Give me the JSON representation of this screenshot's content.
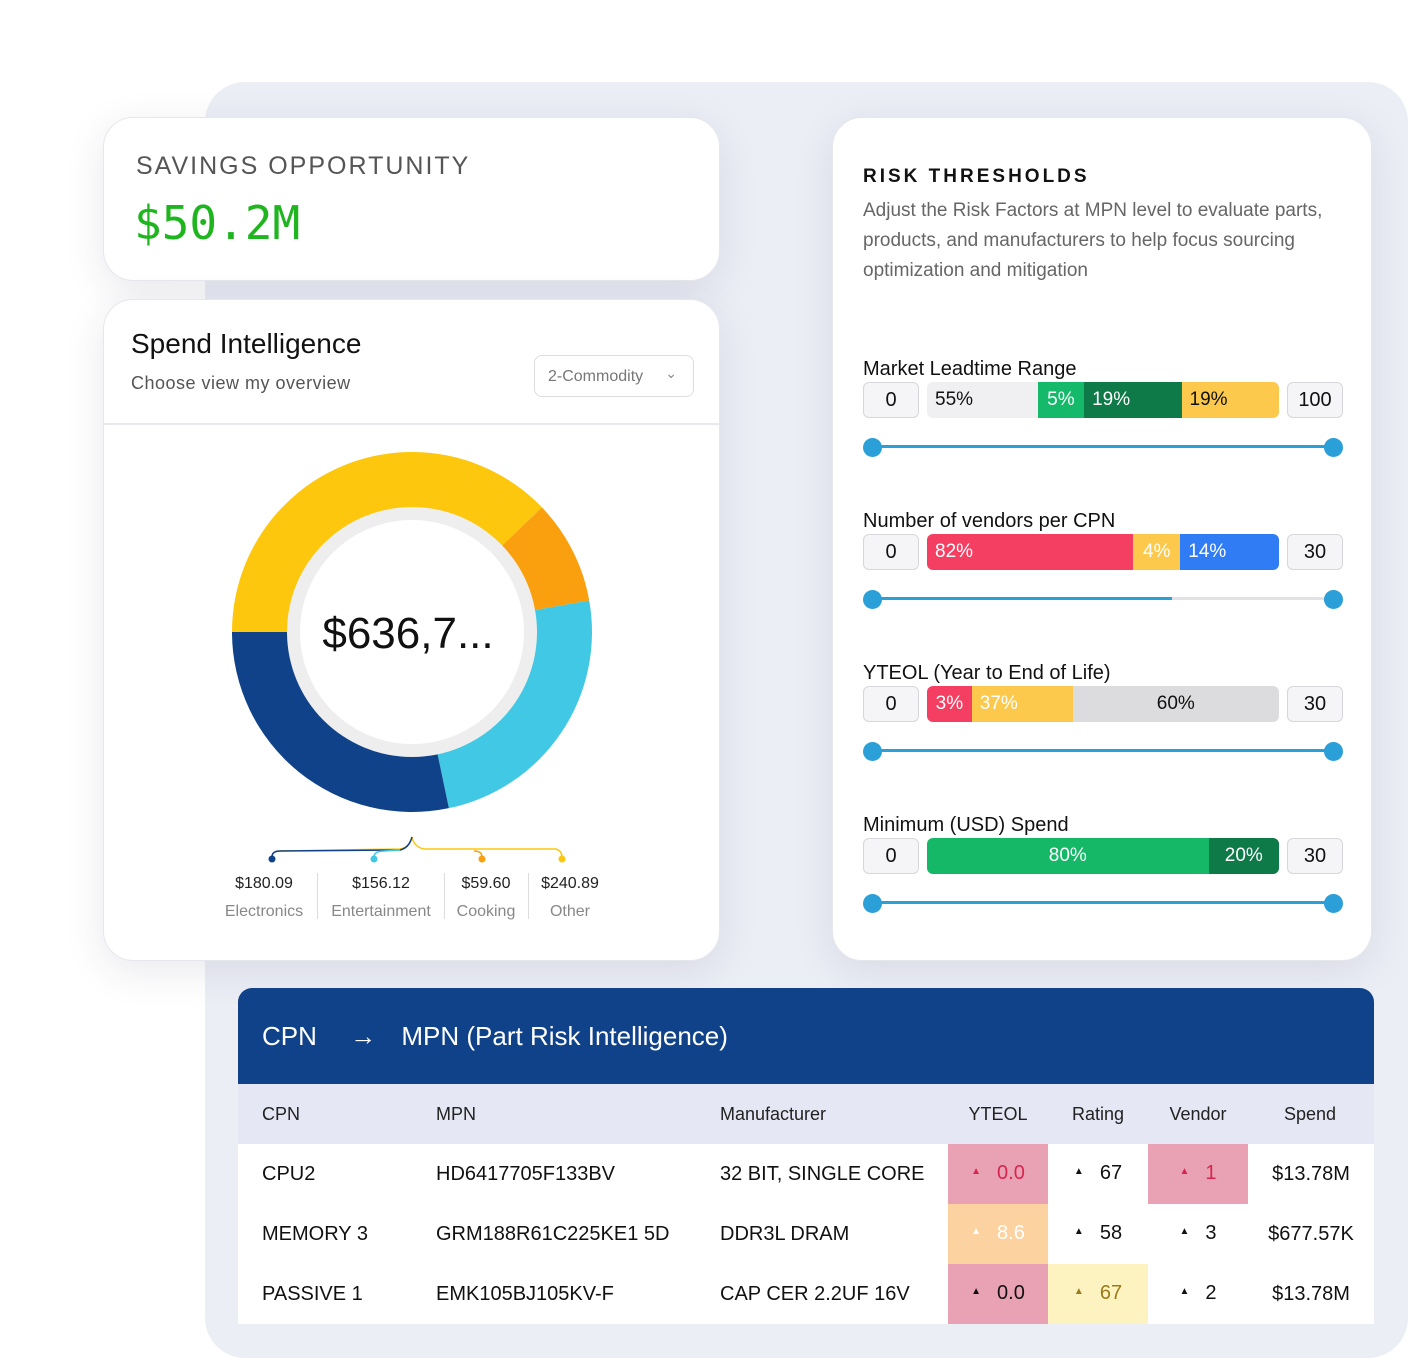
{
  "savings": {
    "label": "SAVINGS OPPORTUNITY",
    "value": "$50.2M"
  },
  "spend": {
    "title": "Spend Intelligence",
    "subtitle": "Choose view my overview",
    "select_value": "2-Commodity",
    "center_value": "$636,7...",
    "legend": [
      {
        "value": "$180.09",
        "name": "Electronics",
        "color": "#10428a"
      },
      {
        "value": "$156.12",
        "name": "Entertainment",
        "color": "#41c8e4"
      },
      {
        "value": "$59.60",
        "name": "Cooking",
        "color": "#fa9f0e"
      },
      {
        "value": "$240.89",
        "name": "Other",
        "color": "#fcc70d"
      }
    ]
  },
  "risk": {
    "title": "RISK THRESHOLDS",
    "description": "Adjust the Risk Factors at MPN level to evaluate parts, products, and manufacturers to help focus sourcing optimization and mitigation",
    "rows": [
      {
        "label": "Market Leadtime Range",
        "min": "0",
        "max": "100",
        "slider_fill": 1.0,
        "segments": [
          {
            "text": "55%",
            "color": "#f0f0f2",
            "text_color": "#111",
            "weight": 31,
            "align": "left"
          },
          {
            "text": "5%",
            "color": "#15b96a",
            "text_color": "#fff",
            "weight": 14,
            "align": "center"
          },
          {
            "text": "19%",
            "color": "#0d7a47",
            "text_color": "#fff",
            "weight": 27,
            "align": "left"
          },
          {
            "text": "19%",
            "color": "#fdc94d",
            "text_color": "#111",
            "weight": 27,
            "align": "left"
          }
        ]
      },
      {
        "label": "Number of vendors per CPN",
        "min": "0",
        "max": "30",
        "slider_fill": 0.65,
        "segments": [
          {
            "text": "82%",
            "color": "#f43f62",
            "text_color": "#fff",
            "weight": 59,
            "align": "left"
          },
          {
            "text": "4%",
            "color": "#fdc94d",
            "text_color": "#fff",
            "weight": 14,
            "align": "center"
          },
          {
            "text": "14%",
            "color": "#2f7cf5",
            "text_color": "#fff",
            "weight": 27,
            "align": "left"
          }
        ]
      },
      {
        "label": "YTEOL (Year to End of Life)",
        "min": "0",
        "max": "30",
        "slider_fill": 1.0,
        "segments": [
          {
            "text": "3%",
            "color": "#f43f62",
            "text_color": "#fff",
            "weight": 13,
            "align": "center"
          },
          {
            "text": "37%",
            "color": "#fdc94d",
            "text_color": "#fff",
            "weight": 27,
            "align": "left"
          },
          {
            "text": "60%",
            "color": "#dcdcde",
            "text_color": "#111",
            "weight": 60,
            "align": "center"
          }
        ]
      },
      {
        "label": "Minimum (USD) Spend",
        "min": "0",
        "max": "30",
        "slider_fill": 1.0,
        "segments": [
          {
            "text": "80%",
            "color": "#14b866",
            "text_color": "#fff",
            "weight": 80,
            "align": "center"
          },
          {
            "text": "20%",
            "color": "#0d7a47",
            "text_color": "#fff",
            "weight": 20,
            "align": "center"
          }
        ]
      }
    ]
  },
  "table": {
    "title_left": "CPN",
    "arrow": "→",
    "title_right": "MPN (Part Risk Intelligence)",
    "columns": [
      "CPN",
      "MPN",
      "Manufacturer",
      "YTEOL",
      "Rating",
      "Vendor",
      "Spend"
    ],
    "rows": [
      {
        "cpn": "CPU2",
        "mpn": "HD6417705F133BV",
        "manufacturer": "32 BIT, SINGLE CORE",
        "ytEol": "0.0",
        "rating": "67",
        "vendor": "1",
        "spend": "$13.78M",
        "ytEol_bg": "#e8a2b4",
        "ytEol_color": "#d8254f",
        "rating_bg": "#ffffff",
        "rating_color": "#111",
        "vendor_bg": "#e8a2b4",
        "vendor_color": "#d8254f"
      },
      {
        "cpn": "MEMORY 3",
        "mpn": "GRM188R61C225KE1 5D",
        "manufacturer": "DDR3L DRAM",
        "ytEol": "8.6",
        "rating": "58",
        "vendor": "3",
        "spend": "$677.57K",
        "ytEol_bg": "#fcd3a0",
        "ytEol_color": "#ffffff",
        "rating_bg": "#ffffff",
        "rating_color": "#111",
        "vendor_bg": "#ffffff",
        "vendor_color": "#111"
      },
      {
        "cpn": "PASSIVE 1",
        "mpn": "EMK105BJ105KV-F",
        "manufacturer": "CAP CER 2.2UF 16V",
        "ytEol": "0.0",
        "rating": "67",
        "vendor": "2",
        "spend": "$13.78M",
        "ytEol_bg": "#e8a2b4",
        "ytEol_color": "#111",
        "rating_bg": "#fdf3c0",
        "rating_color": "#9a7a1a",
        "vendor_bg": "#ffffff",
        "vendor_color": "#111"
      }
    ]
  }
}
